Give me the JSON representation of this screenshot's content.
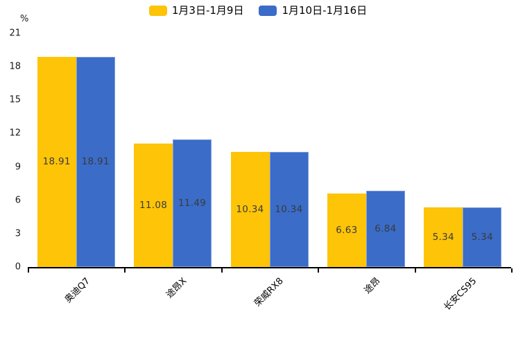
{
  "chart_data": {
    "type": "bar",
    "title": "",
    "unit_label": "%",
    "categories": [
      "奥迪Q7",
      "途昂X",
      "荣威RX8",
      "途昂",
      "长安CS95"
    ],
    "series": [
      {
        "name": "1月3日-1月9日",
        "color": "#FDC408",
        "values": [
          18.91,
          11.08,
          10.34,
          6.63,
          5.34
        ]
      },
      {
        "name": "1月10日-1月16日",
        "color": "#3A6CC8",
        "values": [
          18.91,
          11.49,
          10.34,
          6.84,
          5.34
        ]
      }
    ],
    "ylim": [
      0,
      21
    ],
    "yticks": [
      0,
      3,
      6,
      9,
      12,
      15,
      18,
      21
    ],
    "grid": false,
    "legend_position": "top",
    "value_labels": "inside-center"
  },
  "colors": {
    "background": "#ffffff",
    "axis": "#000000",
    "series_yellow": "#FDC408",
    "series_blue": "#3A6CC8",
    "value_label_text": "#3a3a3a",
    "tick_label_text": "#1a1a1a"
  }
}
